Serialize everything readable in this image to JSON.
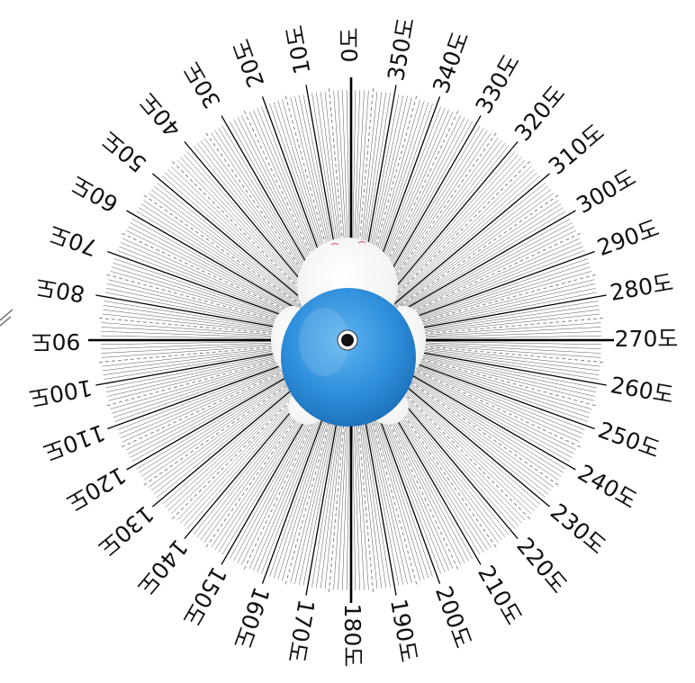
{
  "dial": {
    "unit": "도",
    "labels": [
      "0도",
      "10도",
      "20도",
      "30도",
      "40도",
      "50도",
      "60도",
      "70도",
      "80도",
      "90도",
      "100도",
      "110도",
      "120도",
      "130도",
      "140도",
      "150도",
      "160도",
      "170도",
      "180도",
      "190도",
      "200도",
      "210도",
      "220도",
      "230도",
      "240도",
      "250도",
      "260도",
      "270도",
      "280도",
      "290도",
      "300도",
      "310도",
      "320도",
      "330도",
      "340도",
      "350도"
    ],
    "label_angles": [
      0,
      10,
      20,
      30,
      40,
      50,
      60,
      70,
      80,
      90,
      100,
      110,
      120,
      130,
      140,
      150,
      160,
      170,
      180,
      190,
      200,
      210,
      220,
      230,
      240,
      250,
      260,
      270,
      280,
      290,
      300,
      310,
      320,
      330,
      340,
      350
    ],
    "direction": "counterclockwise",
    "tick_step_degrees": 1
  },
  "robot": {
    "view": "top-down",
    "body_color": "#2f8fdc",
    "head_color": "#ffffff",
    "center_marker": "camera-lens"
  },
  "colors": {
    "major_tick": "#000000",
    "minor_tick": "#555555",
    "dashed_tick": "#777777"
  }
}
